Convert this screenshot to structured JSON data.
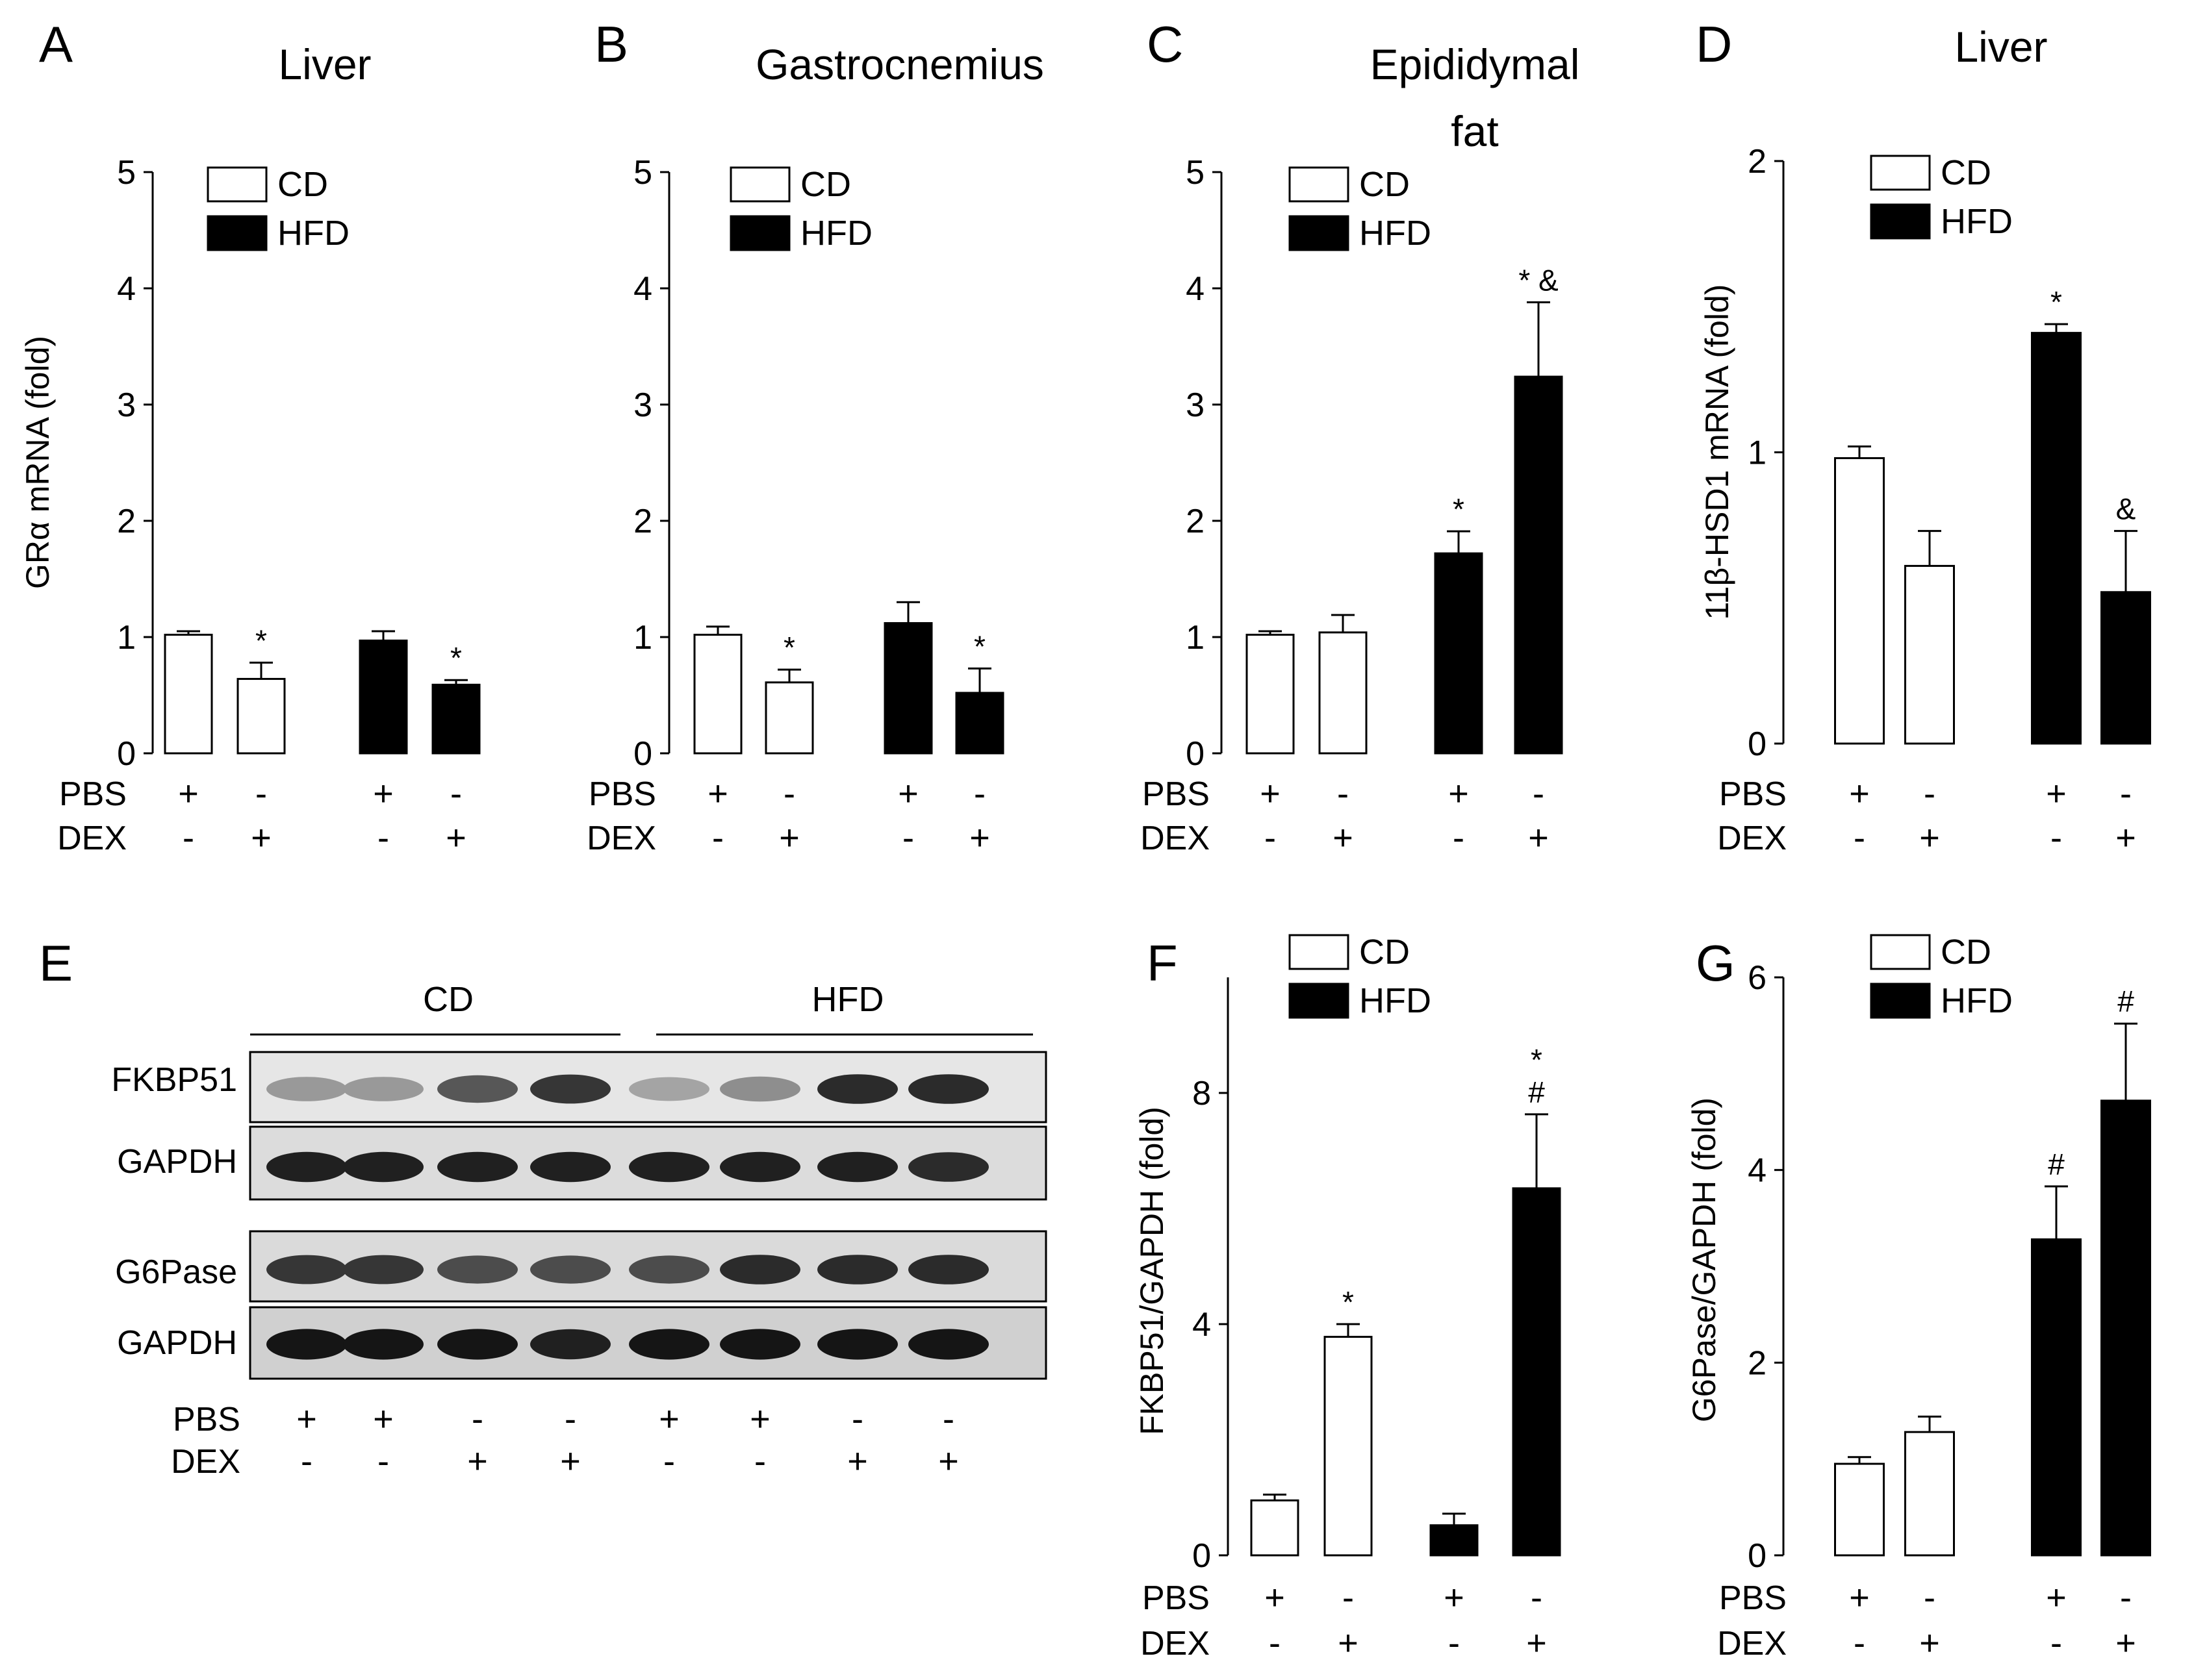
{
  "figure": {
    "groups": [
      "CD",
      "HFD"
    ],
    "row_labels": [
      "PBS",
      "DEX"
    ],
    "treatment_signs": [
      [
        "+",
        "-"
      ],
      [
        "-",
        "+"
      ]
    ],
    "sign_line_pbs": [
      "+",
      "-",
      "+",
      "-"
    ],
    "sign_line_dex": [
      "-",
      "+",
      "-",
      "+"
    ]
  },
  "chart_data": [
    {
      "panel": "A",
      "type": "bar",
      "title": "Liver",
      "ylabel": "GRα mRNA (fold)",
      "xlabel": "",
      "ylim": [
        0,
        5
      ],
      "yticks": [
        0,
        1,
        2,
        3,
        4,
        5
      ],
      "legend": [
        "CD",
        "HFD"
      ],
      "legend_position": "top-left",
      "bars": [
        {
          "group": "CD",
          "PBS": "+",
          "DEX": "-",
          "value": 1.02,
          "error": 0.03,
          "annotation": ""
        },
        {
          "group": "CD",
          "PBS": "-",
          "DEX": "+",
          "value": 0.64,
          "error": 0.14,
          "annotation": "*"
        },
        {
          "group": "HFD",
          "PBS": "+",
          "DEX": "-",
          "value": 0.97,
          "error": 0.08,
          "annotation": ""
        },
        {
          "group": "HFD",
          "PBS": "-",
          "DEX": "+",
          "value": 0.59,
          "error": 0.04,
          "annotation": "*"
        }
      ]
    },
    {
      "panel": "B",
      "type": "bar",
      "title": "Gastrocnemius",
      "ylabel": "",
      "xlabel": "",
      "ylim": [
        0,
        5
      ],
      "yticks": [
        0,
        1,
        2,
        3,
        4,
        5
      ],
      "legend": [
        "CD",
        "HFD"
      ],
      "legend_position": "top-left",
      "bars": [
        {
          "group": "CD",
          "PBS": "+",
          "DEX": "-",
          "value": 1.02,
          "error": 0.07,
          "annotation": ""
        },
        {
          "group": "CD",
          "PBS": "-",
          "DEX": "+",
          "value": 0.61,
          "error": 0.11,
          "annotation": "*"
        },
        {
          "group": "HFD",
          "PBS": "+",
          "DEX": "-",
          "value": 1.12,
          "error": 0.18,
          "annotation": ""
        },
        {
          "group": "HFD",
          "PBS": "-",
          "DEX": "+",
          "value": 0.52,
          "error": 0.21,
          "annotation": "*"
        }
      ]
    },
    {
      "panel": "C",
      "type": "bar",
      "title": "Epididymal fat",
      "ylabel": "",
      "xlabel": "",
      "ylim": [
        0,
        5
      ],
      "yticks": [
        0,
        1,
        2,
        3,
        4,
        5
      ],
      "legend": [
        "CD",
        "HFD"
      ],
      "legend_position": "top-left",
      "bars": [
        {
          "group": "CD",
          "PBS": "+",
          "DEX": "-",
          "value": 1.02,
          "error": 0.03,
          "annotation": ""
        },
        {
          "group": "CD",
          "PBS": "-",
          "DEX": "+",
          "value": 1.04,
          "error": 0.15,
          "annotation": ""
        },
        {
          "group": "HFD",
          "PBS": "+",
          "DEX": "-",
          "value": 1.72,
          "error": 0.19,
          "annotation": "*"
        },
        {
          "group": "HFD",
          "PBS": "-",
          "DEX": "+",
          "value": 3.24,
          "error": 0.64,
          "annotation": "* &"
        }
      ]
    },
    {
      "panel": "D",
      "type": "bar",
      "title": "Liver",
      "ylabel": "11β-HSD1 mRNA (fold)",
      "xlabel": "",
      "ylim": [
        0,
        2
      ],
      "yticks": [
        0,
        1,
        2
      ],
      "legend": [
        "CD",
        "HFD"
      ],
      "legend_position": "top-left",
      "bars": [
        {
          "group": "CD",
          "PBS": "+",
          "DEX": "-",
          "value": 0.98,
          "error": 0.04,
          "annotation": ""
        },
        {
          "group": "CD",
          "PBS": "-",
          "DEX": "+",
          "value": 0.61,
          "error": 0.12,
          "annotation": ""
        },
        {
          "group": "HFD",
          "PBS": "+",
          "DEX": "-",
          "value": 1.41,
          "error": 0.03,
          "annotation": "*"
        },
        {
          "group": "HFD",
          "PBS": "-",
          "DEX": "+",
          "value": 0.52,
          "error": 0.21,
          "annotation": "&"
        }
      ]
    },
    {
      "panel": "F",
      "type": "bar",
      "title": "",
      "ylabel": "FKBP51/GAPDH (fold)",
      "xlabel": "",
      "ylim": [
        0,
        10
      ],
      "yticks": [
        0,
        4,
        8
      ],
      "legend": [
        "CD",
        "HFD"
      ],
      "legend_position": "top-left",
      "bars": [
        {
          "group": "CD",
          "PBS": "+",
          "DEX": "-",
          "value": 0.95,
          "error": 0.1,
          "annotation": ""
        },
        {
          "group": "CD",
          "PBS": "-",
          "DEX": "+",
          "value": 3.78,
          "error": 0.22,
          "annotation": "*"
        },
        {
          "group": "HFD",
          "PBS": "+",
          "DEX": "-",
          "value": 0.52,
          "error": 0.2,
          "annotation": ""
        },
        {
          "group": "HFD",
          "PBS": "-",
          "DEX": "+",
          "value": 6.35,
          "error": 1.28,
          "annotation": "*\n#"
        }
      ]
    },
    {
      "panel": "G",
      "type": "bar",
      "title": "",
      "ylabel": "G6Pase/GAPDH (fold)",
      "xlabel": "",
      "ylim": [
        0,
        6
      ],
      "yticks": [
        0,
        2,
        4,
        6
      ],
      "legend": [
        "CD",
        "HFD"
      ],
      "legend_position": "top-left",
      "bars": [
        {
          "group": "CD",
          "PBS": "+",
          "DEX": "-",
          "value": 0.95,
          "error": 0.07,
          "annotation": ""
        },
        {
          "group": "CD",
          "PBS": "-",
          "DEX": "+",
          "value": 1.28,
          "error": 0.16,
          "annotation": ""
        },
        {
          "group": "HFD",
          "PBS": "+",
          "DEX": "-",
          "value": 3.28,
          "error": 0.55,
          "annotation": "#"
        },
        {
          "group": "HFD",
          "PBS": "-",
          "DEX": "+",
          "value": 4.72,
          "error": 0.8,
          "annotation": "#"
        }
      ]
    }
  ],
  "western_blot": {
    "panel": "E",
    "group_labels": [
      "CD",
      "HFD"
    ],
    "rows": [
      "FKBP51",
      "GAPDH",
      "G6Pase",
      "GAPDH"
    ],
    "lane_PBS": [
      "+",
      "+",
      "-",
      "-",
      "+",
      "+",
      "-",
      "-"
    ],
    "lane_DEX": [
      "-",
      "-",
      "+",
      "+",
      "-",
      "-",
      "+",
      "+"
    ],
    "band_intensity": [
      [
        0.35,
        0.35,
        0.65,
        0.8,
        0.3,
        0.4,
        0.85,
        0.85
      ],
      [
        0.9,
        0.9,
        0.9,
        0.9,
        0.9,
        0.9,
        0.9,
        0.85
      ],
      [
        0.8,
        0.8,
        0.7,
        0.7,
        0.7,
        0.85,
        0.85,
        0.85
      ],
      [
        0.95,
        0.95,
        0.95,
        0.9,
        0.95,
        0.95,
        0.95,
        0.95
      ]
    ]
  }
}
